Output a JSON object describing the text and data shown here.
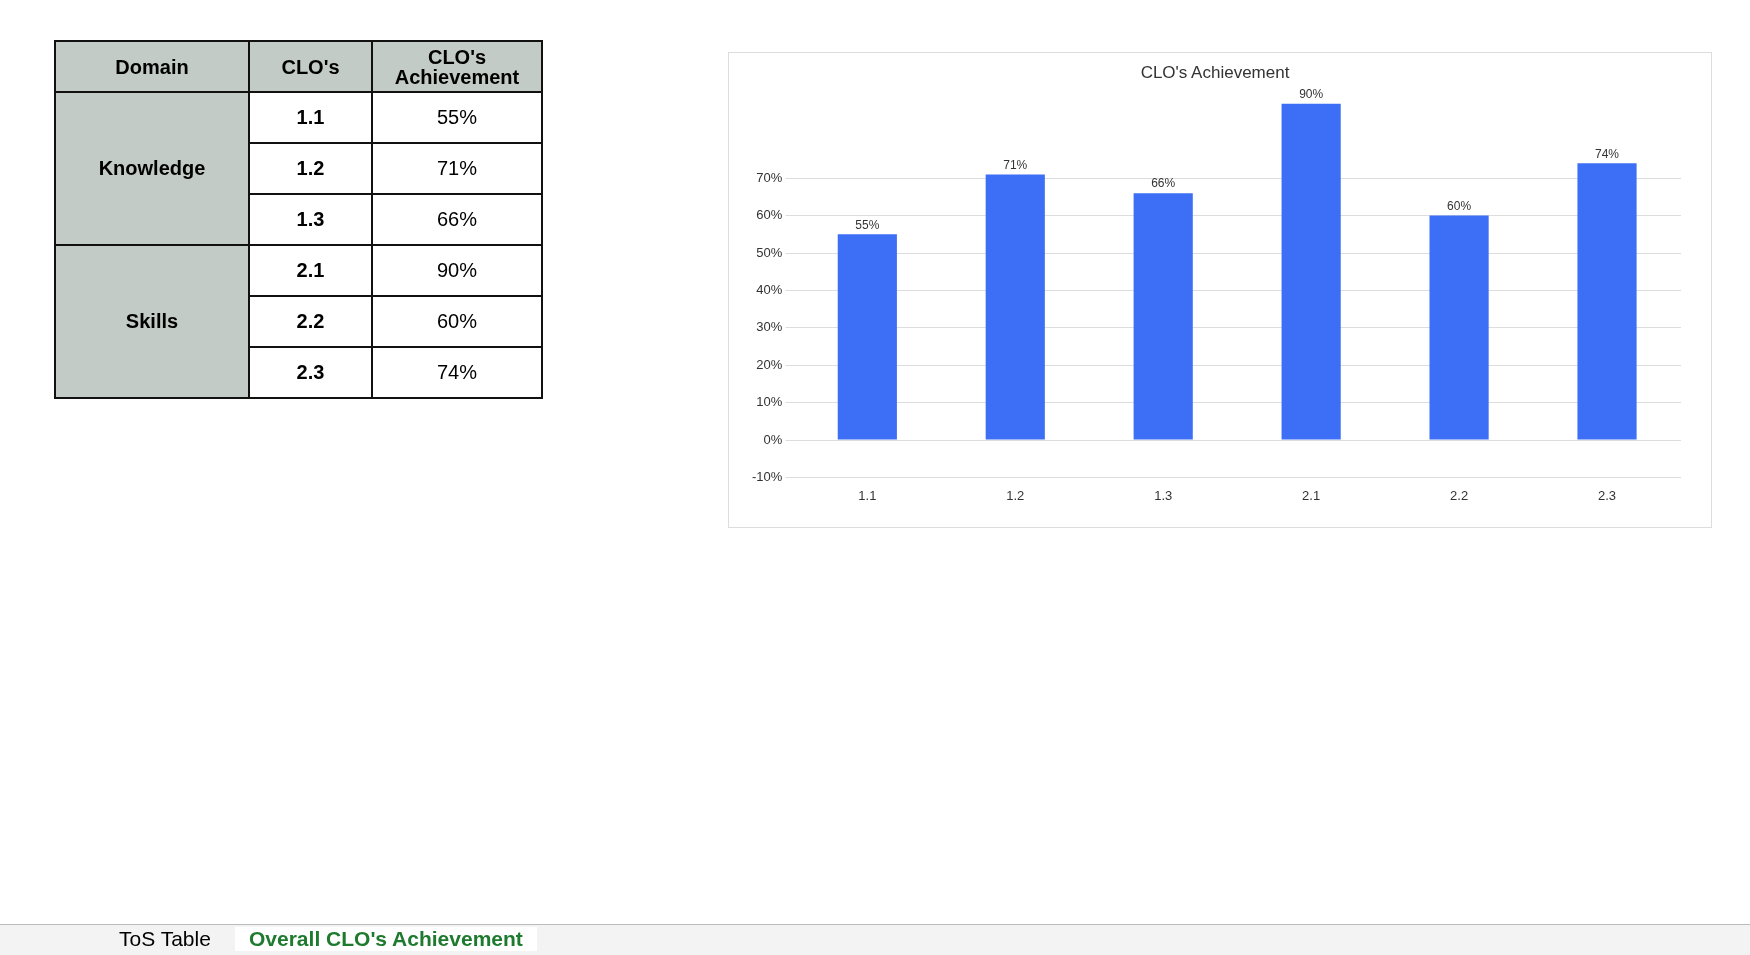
{
  "chart_data": {
    "type": "bar",
    "title": "CLO's Achievement",
    "categories": [
      "1.1",
      "1.2",
      "1.3",
      "2.1",
      "2.2",
      "2.3"
    ],
    "values": [
      55,
      71,
      66,
      90,
      60,
      74
    ],
    "value_labels": [
      "55%",
      "71%",
      "66%",
      "90%",
      "60%",
      "74%"
    ],
    "color": "#3c6ff5",
    "ylim": [
      -10,
      90
    ],
    "yticks": [
      {
        "value": -10,
        "label": "-10%"
      },
      {
        "value": 0,
        "label": "0%"
      },
      {
        "value": 10,
        "label": "10%"
      },
      {
        "value": 20,
        "label": "20%"
      },
      {
        "value": 30,
        "label": "30%"
      },
      {
        "value": 40,
        "label": "40%"
      },
      {
        "value": 50,
        "label": "50%"
      },
      {
        "value": 60,
        "label": "60%"
      },
      {
        "value": 70,
        "label": "70%"
      }
    ],
    "grid": "y",
    "legend": false,
    "annotations": [
      "Domain",
      "CLO's",
      "CLO's Achievement",
      "Knowledge",
      "Skills",
      "ToS Table",
      "Overall CLO's Achievement"
    ]
  }
}
